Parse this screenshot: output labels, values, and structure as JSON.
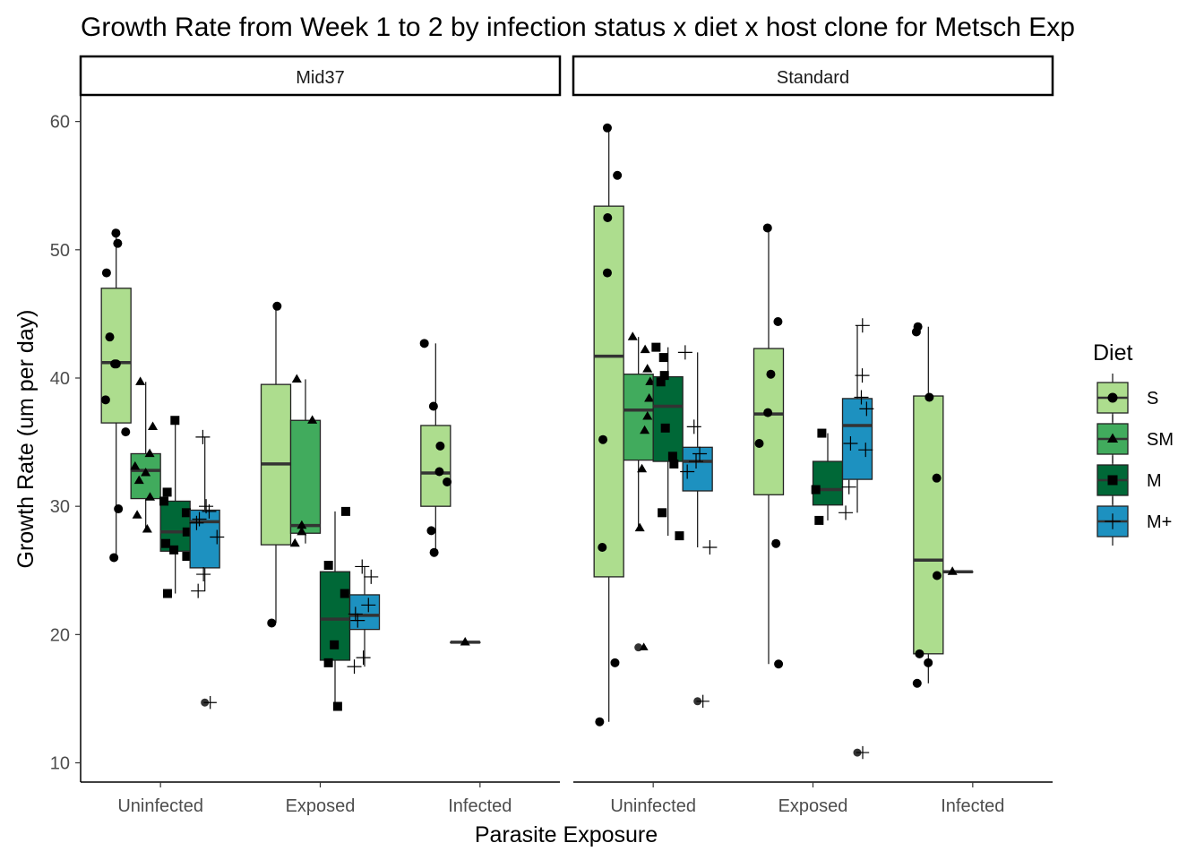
{
  "chart_data": {
    "type": "box",
    "title": "Growth Rate from Week 1 to 2 by infection status x diet x host clone for Metsch Exp",
    "xlabel": "Parasite Exposure",
    "ylabel": "Growth Rate (um per day)",
    "ylim": [
      8.5,
      62
    ],
    "yticks": [
      10,
      20,
      30,
      40,
      50,
      60
    ],
    "categories": [
      "Uninfected",
      "Exposed",
      "Infected"
    ],
    "legend": {
      "title": "Diet",
      "position": "right",
      "items": [
        {
          "label": "S",
          "color": "#addd8e",
          "shape": "circle"
        },
        {
          "label": "SM",
          "color": "#41ab5d",
          "shape": "triangle"
        },
        {
          "label": "M",
          "color": "#006837",
          "shape": "square"
        },
        {
          "label": "M+",
          "color": "#1d91c0",
          "shape": "cross"
        }
      ]
    },
    "panels": [
      {
        "clone": "Mid37",
        "groups": [
          {
            "category": "Uninfected",
            "diet": "S",
            "box": {
              "min": 26,
              "q1": 36.5,
              "median": 41.2,
              "q3": 47,
              "max": 51.3
            },
            "points": [
              51.3,
              50.5,
              48.2,
              43.2,
              41.1,
              41.1,
              38.3,
              35.8,
              29.8,
              26
            ]
          },
          {
            "category": "Uninfected",
            "diet": "SM",
            "box": {
              "min": 28.2,
              "q1": 30.6,
              "median": 32.8,
              "q3": 34.1,
              "max": 39.7
            },
            "points": [
              39.7,
              36.2,
              34.1,
              33.1,
              32.6,
              32,
              30.7,
              29.3,
              28.2
            ]
          },
          {
            "category": "Uninfected",
            "diet": "M",
            "box": {
              "min": 23.2,
              "q1": 26.5,
              "median": 28,
              "q3": 30.4,
              "max": 36.7
            },
            "points": [
              36.7,
              31.1,
              30.4,
              29.5,
              28,
              27.1,
              26.6,
              26.1,
              23.2
            ]
          },
          {
            "category": "Uninfected",
            "diet": "M+",
            "box": {
              "min": 23.4,
              "q1": 25.2,
              "median": 28.8,
              "q3": 29.7,
              "max": 35.4
            },
            "points": [
              35.4,
              30,
              29.6,
              29,
              28.7,
              27.6,
              24.7,
              23.4
            ],
            "outliers": [
              14.7
            ]
          },
          {
            "category": "Exposed",
            "diet": "S",
            "box": {
              "min": 20.9,
              "q1": 27,
              "median": 33.3,
              "q3": 39.5,
              "max": 45.6
            },
            "points": [
              45.6,
              20.9
            ]
          },
          {
            "category": "Exposed",
            "diet": "SM",
            "box": {
              "min": 27.1,
              "q1": 27.9,
              "median": 28.5,
              "q3": 36.7,
              "max": 39.9
            },
            "points": [
              39.9,
              36.7,
              28.5,
              28,
              27.1
            ]
          },
          {
            "category": "Exposed",
            "diet": "M",
            "box": {
              "min": 14.4,
              "q1": 18,
              "median": 21.2,
              "q3": 24.9,
              "max": 29.6
            },
            "points": [
              29.6,
              25.4,
              23.2,
              19.2,
              17.8,
              14.4
            ]
          },
          {
            "category": "Exposed",
            "diet": "M+",
            "box": {
              "min": 17.5,
              "q1": 20.4,
              "median": 21.5,
              "q3": 23.1,
              "max": 25.3
            },
            "points": [
              25.3,
              24.5,
              22.3,
              21.6,
              21.1,
              18.2,
              17.5
            ]
          },
          {
            "category": "Infected",
            "diet": "S",
            "box": {
              "min": 26.4,
              "q1": 30,
              "median": 32.6,
              "q3": 36.3,
              "max": 42.7
            },
            "points": [
              42.7,
              37.8,
              34.7,
              32.7,
              31.9,
              28.1,
              26.4
            ]
          },
          {
            "category": "Infected",
            "diet": "SM",
            "box": {
              "min": 19.4,
              "q1": 19.4,
              "median": 19.4,
              "q3": 19.4,
              "max": 19.4
            },
            "points": [
              19.4
            ]
          }
        ]
      },
      {
        "clone": "Standard",
        "groups": [
          {
            "category": "Uninfected",
            "diet": "S",
            "box": {
              "min": 13.2,
              "q1": 24.5,
              "median": 41.7,
              "q3": 53.4,
              "max": 59.5
            },
            "points": [
              59.5,
              55.8,
              52.5,
              48.2,
              35.2,
              26.8,
              17.8,
              13.2
            ]
          },
          {
            "category": "Uninfected",
            "diet": "SM",
            "box": {
              "min": 28.3,
              "q1": 33.6,
              "median": 37.5,
              "q3": 40.3,
              "max": 43.2
            },
            "points": [
              43.2,
              42.2,
              40.7,
              39.7,
              38.4,
              37,
              35.9,
              32.9,
              28.3
            ],
            "outliers": [
              19
            ]
          },
          {
            "category": "Uninfected",
            "diet": "M",
            "box": {
              "min": 27.7,
              "q1": 33.5,
              "median": 37.8,
              "q3": 40.1,
              "max": 42.4
            },
            "points": [
              42.4,
              41.6,
              40.2,
              39.7,
              36.1,
              33.9,
              33.3,
              29.5,
              27.7
            ]
          },
          {
            "category": "Uninfected",
            "diet": "M+",
            "box": {
              "min": 26.8,
              "q1": 31.2,
              "median": 33.5,
              "q3": 34.6,
              "max": 42
            },
            "points": [
              42,
              36.2,
              34.1,
              33.5,
              32.7,
              26.8
            ],
            "outliers": [
              14.8
            ]
          },
          {
            "category": "Exposed",
            "diet": "S",
            "box": {
              "min": 17.7,
              "q1": 30.9,
              "median": 37.2,
              "q3": 42.3,
              "max": 51.7
            },
            "points": [
              51.7,
              44.4,
              40.3,
              37.3,
              34.9,
              27.1,
              17.7
            ]
          },
          {
            "category": "Exposed",
            "diet": "M",
            "box": {
              "min": 28.9,
              "q1": 30.1,
              "median": 31.3,
              "q3": 33.5,
              "max": 35.7
            },
            "points": [
              35.7,
              31.3,
              28.9
            ]
          },
          {
            "category": "Exposed",
            "diet": "M+",
            "box": {
              "min": 29.5,
              "q1": 32.1,
              "median": 36.3,
              "q3": 38.4,
              "max": 44.1
            },
            "points": [
              44.1,
              40.2,
              38.5,
              37.6,
              34.9,
              34.4,
              31.5,
              29.5
            ],
            "outliers": [
              10.8
            ]
          },
          {
            "category": "Infected",
            "diet": "S",
            "box": {
              "min": 16.2,
              "q1": 18.5,
              "median": 25.8,
              "q3": 38.6,
              "max": 44
            },
            "points": [
              44,
              43.6,
              38.5,
              32.2,
              24.6,
              18.5,
              17.8,
              16.2
            ]
          },
          {
            "category": "Infected",
            "diet": "SM",
            "box": {
              "min": 24.9,
              "q1": 24.9,
              "median": 24.9,
              "q3": 24.9,
              "max": 24.9
            },
            "points": [
              24.9
            ]
          }
        ]
      }
    ]
  }
}
